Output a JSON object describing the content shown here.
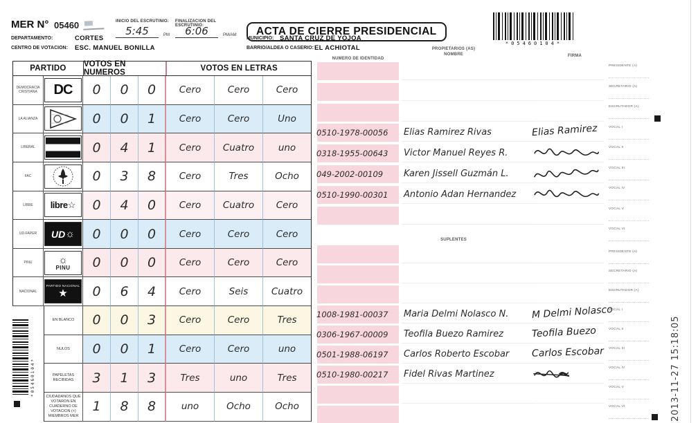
{
  "header": {
    "mer_label": "MER N°",
    "mer_number": "05460",
    "inicio_label": "INICIO DEL ESCRUTINIO:",
    "inicio_value": "5:45",
    "inicio_suffix": "PM",
    "fin_label": "FINALIZACION DEL ESCRUTINIO:",
    "fin_value": "6:06",
    "fin_suffix": "PM/AM",
    "title": "ACTA DE CIERRE PRESIDENCIAL",
    "departamento_label": "DEPARTAMENTO:",
    "departamento": "CORTES",
    "municipio_label": "MUNICIPIO:",
    "municipio": "SANTA CRUZ DE YOJOA",
    "centro_label": "CENTRO DE VOTACION:",
    "centro": "ESC. MANUEL BONILLA",
    "barrio_label": "BARRIO/ALDEA O CASERIO:",
    "barrio": "EL ACHIOTAL",
    "barcode_text": "*05460104*"
  },
  "table": {
    "headers": {
      "partido": "PARTIDO",
      "numeros": "VOTOS EN NUMEROS",
      "letras": "VOTOS EN LETRAS"
    },
    "rows": [
      {
        "label": "DEMOCRACIA CRISTIANA",
        "logo": "dc-logo",
        "logo_text": "DC",
        "numeros": [
          "0",
          "0",
          "0"
        ],
        "letras": [
          "Cero",
          "Cero",
          "Cero"
        ]
      },
      {
        "label": "LA ALIANZA",
        "logo": "alianza-triangle-logo",
        "logo_text": "",
        "numeros": [
          "0",
          "0",
          "1"
        ],
        "letras": [
          "Cero",
          "Cero",
          "Uno"
        ]
      },
      {
        "label": "LIBERAL",
        "logo": "liberal-flag-logo",
        "logo_text": "",
        "numeros": [
          "0",
          "4",
          "1"
        ],
        "letras": [
          "Cero",
          "Cuatro",
          "uno"
        ]
      },
      {
        "label": "FAC",
        "logo": "fac-shield-logo",
        "logo_text": "",
        "numeros": [
          "0",
          "3",
          "8"
        ],
        "letras": [
          "Cero",
          "Tres",
          "Ocho"
        ]
      },
      {
        "label": "LIBRE",
        "logo": "libre-star-logo",
        "logo_text": "libre",
        "numeros": [
          "0",
          "4",
          "0"
        ],
        "letras": [
          "Cero",
          "Cuatro",
          "Cero"
        ]
      },
      {
        "label": "UD-FAPER",
        "logo": "ud-sun-logo",
        "logo_text": "UD",
        "numeros": [
          "0",
          "0",
          "0"
        ],
        "letras": [
          "Cero",
          "Cero",
          "Cero"
        ]
      },
      {
        "label": "PINU",
        "logo": "pinu-sun-logo",
        "logo_text": "PINU",
        "numeros": [
          "0",
          "0",
          "0"
        ],
        "letras": [
          "Cero",
          "Cero",
          "Cero"
        ]
      },
      {
        "label": "NACIONAL",
        "logo": "nacional-star-logo",
        "logo_text": "PARTIDO NACIONAL",
        "numeros": [
          "0",
          "6",
          "4"
        ],
        "letras": [
          "Cero",
          "Seis",
          "Cuatro"
        ]
      },
      {
        "label": "EN BLANCO",
        "plain": true,
        "numeros": [
          "0",
          "0",
          "3"
        ],
        "letras": [
          "Cero",
          "Cero",
          "Tres"
        ]
      },
      {
        "label": "NULOS",
        "plain": true,
        "numeros": [
          "0",
          "0",
          "1"
        ],
        "letras": [
          "Cero",
          "Cero",
          "uno"
        ]
      },
      {
        "label": "PAPELETAS RECIBIDAS",
        "plain": true,
        "numeros": [
          "3",
          "1",
          "3"
        ],
        "letras": [
          "Tres",
          "uno",
          "Tres"
        ]
      },
      {
        "label": "CIUDADANOS QUE VOTARON EN CUADERNO DE VOTACION (+) MIEMBROS MER",
        "plain": true,
        "numeros": [
          "1",
          "8",
          "8"
        ],
        "letras": [
          "uno",
          "Ocho",
          "Ocho"
        ]
      }
    ]
  },
  "signatures": {
    "id_header": "NUMERO DE IDENTIDAD",
    "prop_header": "PROPIETARIOS (AS)",
    "nombre_header": "NOMBRE",
    "firma_header": "FIRMA",
    "suplentes_header": "SUPLENTES",
    "roles": [
      "PRESIDENTE (A)",
      "SECRETARIO (A)",
      "ESCRUTADOR (A)",
      "VOCAL I",
      "VOCAL II",
      "VOCAL III",
      "VOCAL IV",
      "VOCAL V",
      "VOCAL VI"
    ],
    "propietarios": [
      {
        "slot": 3,
        "id": "0510-1978-00056",
        "name": "Elias Ramirez Rivas",
        "sig_text": "Elias Ramirez",
        "sig_style": "script"
      },
      {
        "slot": 4,
        "id": "0318-1955-00643",
        "name": "Victor Manuel Reyes R.",
        "sig_text": "",
        "sig_style": "scribble"
      },
      {
        "slot": 5,
        "id": "049-2002-00109",
        "name": "Karen Jissell Guzmán L.",
        "sig_text": "",
        "sig_style": "scribble"
      },
      {
        "slot": 6,
        "id": "0510-1990-00301",
        "name": "Antonio Adan Hernandez",
        "sig_text": "",
        "sig_style": "scribble"
      }
    ],
    "suplentes": [
      {
        "slot": 3,
        "id": "1008-1981-00037",
        "name": "Maria Delmi Nolasco N.",
        "sig_text": "M Delmi Nolasco",
        "sig_style": "script"
      },
      {
        "slot": 4,
        "id": "0306-1967-00009",
        "name": "Teofila Buezo Ramirez",
        "sig_text": "Teofila Buezo",
        "sig_style": "script"
      },
      {
        "slot": 5,
        "id": "0501-1988-06197",
        "name": "Carlos Roberto Escobar",
        "sig_text": "Carlos Escobar",
        "sig_style": "script"
      },
      {
        "slot": 6,
        "id": "0510-1980-00217",
        "name": "Fidel Rivas Martinez",
        "sig_text": "",
        "sig_style": "scribble-struck"
      }
    ]
  },
  "side": {
    "timestamp": "2013-11-27 15:18:05"
  },
  "colors": {
    "id_box": "#f7d7dd",
    "tint_blue": "#d9ecf7",
    "tint_pink": "#fce9ec",
    "tint_yellow": "#fbf7e2",
    "red_divider": "#d98f9b"
  }
}
